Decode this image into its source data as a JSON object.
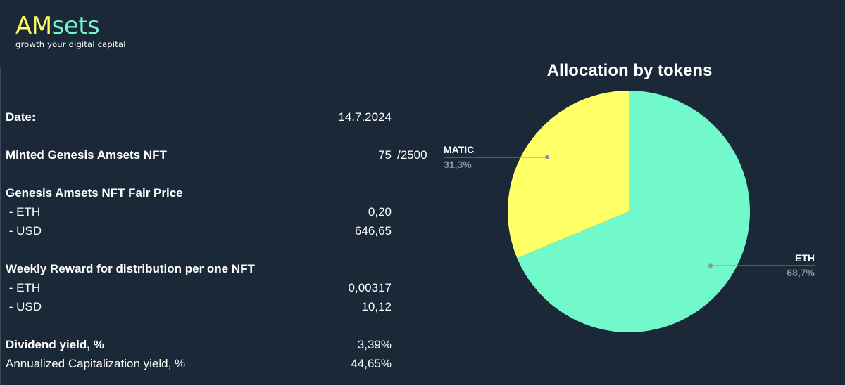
{
  "logo": {
    "am": "AM",
    "sets": "sets",
    "tagline": "growth your digital capital"
  },
  "report": {
    "date_label": "Date:",
    "date_value": "14.7.2024",
    "minted_label": "Minted Genesis Amsets NFT",
    "minted_value": "75",
    "minted_total": "/2500",
    "fair_price_label": "Genesis Amsets NFT Fair Price",
    "fair_eth_label": " - ETH",
    "fair_eth_value": "0,20",
    "fair_usd_label": " - USD",
    "fair_usd_value": "646,65",
    "reward_label": "Weekly Reward for distribution per one NFT",
    "reward_eth_label": " - ETH",
    "reward_eth_value": "0,00317",
    "reward_usd_label": " - USD",
    "reward_usd_value": "10,12",
    "dividend_label": "Dividend yield, %",
    "dividend_value": "3,39%",
    "annual_label": "Annualized Capitalization yield, %",
    "annual_value": "44,65%"
  },
  "chart_data": {
    "type": "pie",
    "title": "Allocation by tokens",
    "slices": [
      {
        "name": "ETH",
        "value": 68.7,
        "label": "68,7%",
        "color": "#72f9cb"
      },
      {
        "name": "MATIC",
        "value": 31.3,
        "label": "31,3%",
        "color": "#ffff66"
      }
    ],
    "start_angle_deg": 0,
    "direction": "clockwise"
  },
  "colors": {
    "background": "#1a2837",
    "eth": "#72f9cb",
    "matic": "#ffff66",
    "pct_text": "#8a929b"
  }
}
